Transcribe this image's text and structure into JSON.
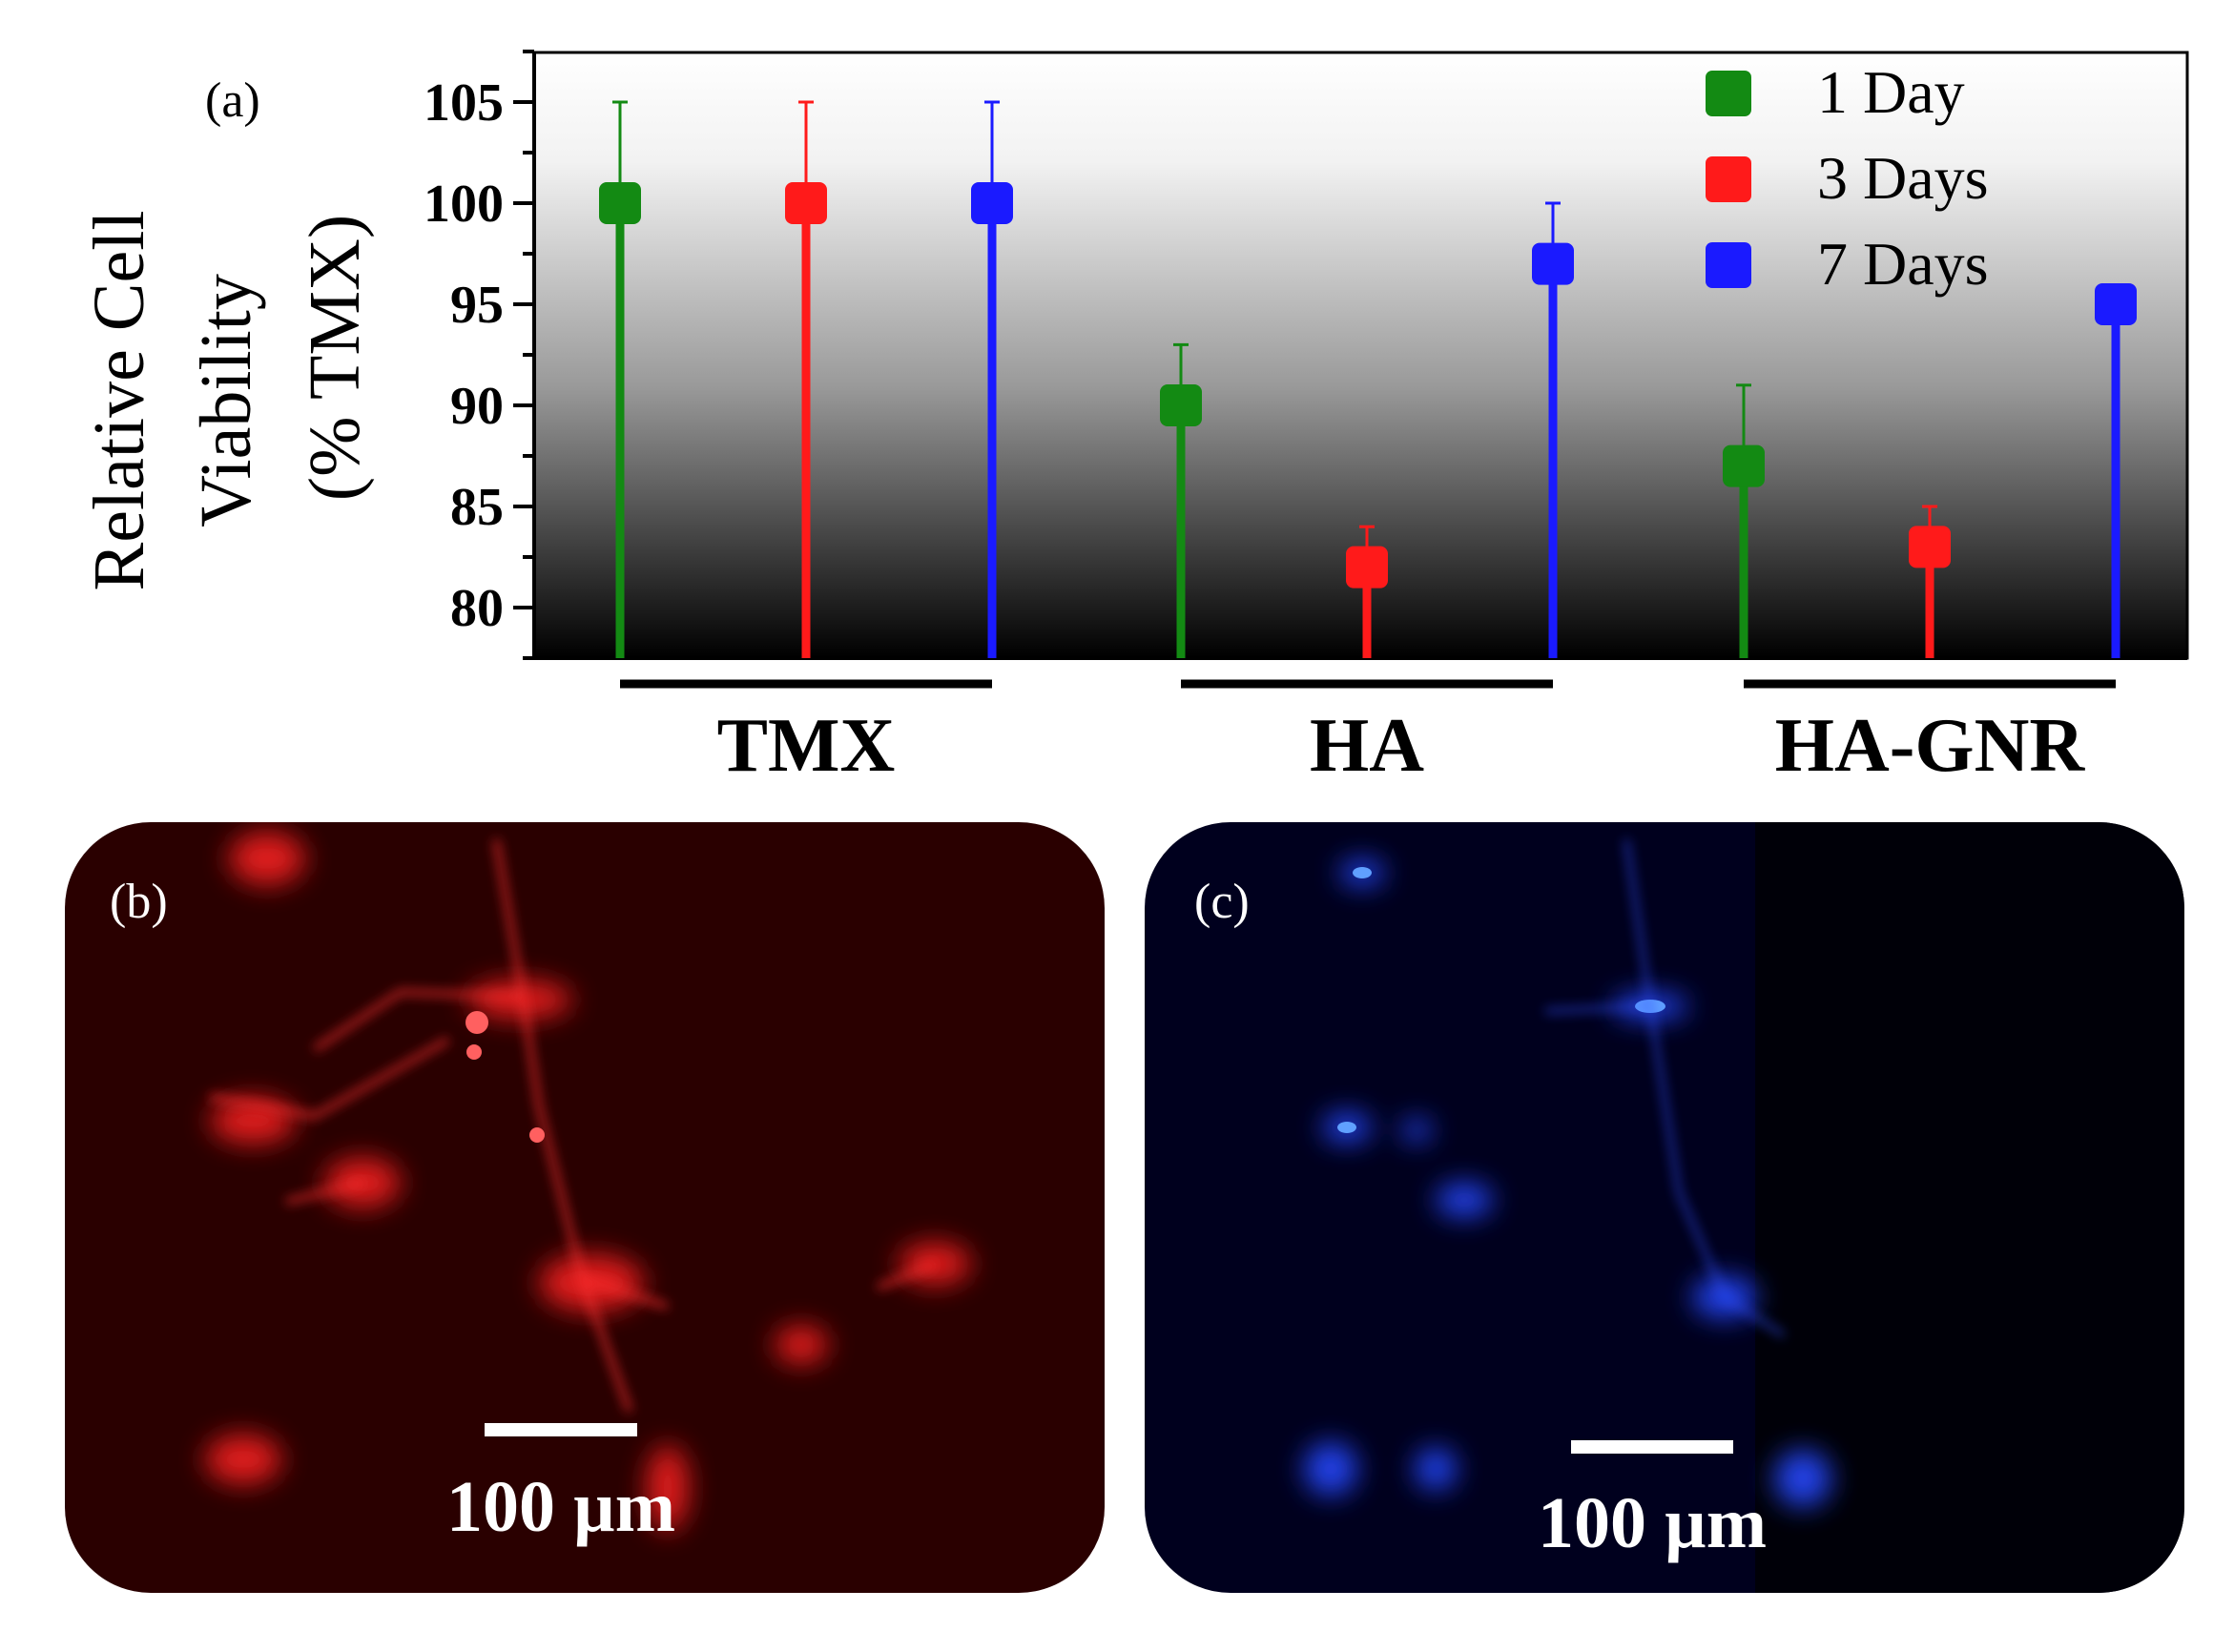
{
  "chart_data": {
    "type": "scatter",
    "panel_label": "(a)",
    "ylabel": [
      "Relative Cell",
      "Viability",
      "(% TMX)"
    ],
    "ylim": [
      77.5,
      107.5
    ],
    "yticks": [
      80,
      85,
      90,
      95,
      100,
      105
    ],
    "groups": [
      "TMX",
      "HA",
      "HA-GNR"
    ],
    "legend_position": "top-right",
    "background": "vertical gradient white (top) to black (bottom)",
    "series": [
      {
        "name": "1 Day",
        "color": "#138a13",
        "values": [
          100,
          90,
          87
        ],
        "errors": [
          5,
          3,
          4
        ]
      },
      {
        "name": "3 Days",
        "color": "#ff1a1a",
        "values": [
          100,
          82,
          83
        ],
        "errors": [
          5,
          2,
          2
        ]
      },
      {
        "name": "7 Days",
        "color": "#1a1aff",
        "values": [
          100,
          97,
          95
        ],
        "errors": [
          5,
          3,
          0
        ]
      }
    ]
  },
  "images": [
    {
      "label": "(b)",
      "scale_bar": "100 µm",
      "stain_color": "#ff2020"
    },
    {
      "label": "(c)",
      "scale_bar": "100 µm",
      "stain_color": "#2040ff"
    }
  ]
}
